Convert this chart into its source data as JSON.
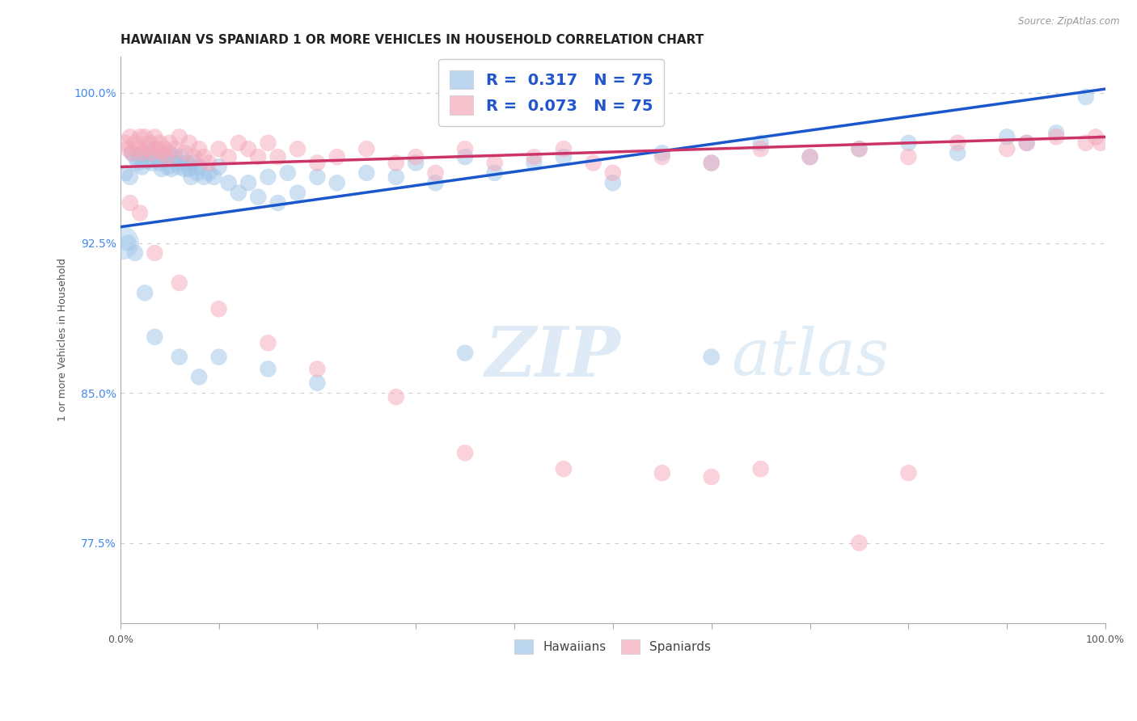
{
  "title": "HAWAIIAN VS SPANIARD 1 OR MORE VEHICLES IN HOUSEHOLD CORRELATION CHART",
  "source": "Source: ZipAtlas.com",
  "ylabel": "1 or more Vehicles in Household",
  "xlim": [
    0.0,
    1.0
  ],
  "ylim": [
    0.735,
    1.018
  ],
  "yticks": [
    0.775,
    0.85,
    0.925,
    1.0
  ],
  "ytick_labels": [
    "77.5%",
    "85.0%",
    "92.5%",
    "100.0%"
  ],
  "background_color": "#ffffff",
  "grid_color": "#cccccc",
  "blue_color": "#9fc5e8",
  "pink_color": "#f4a7b9",
  "blue_line_color": "#1a56cc",
  "pink_line_color": "#cc3366",
  "legend_blue_R": "0.317",
  "legend_blue_N": "75",
  "legend_pink_R": "0.073",
  "legend_pink_N": "75",
  "watermark_zip": "ZIP",
  "watermark_atlas": "atlas",
  "title_fontsize": 11,
  "axis_label_fontsize": 9,
  "tick_fontsize": 9,
  "legend_fontsize": 14,
  "hawaiians_x": [
    0.005,
    0.01,
    0.012,
    0.015,
    0.018,
    0.02,
    0.022,
    0.025,
    0.028,
    0.03,
    0.032,
    0.035,
    0.038,
    0.04,
    0.042,
    0.045,
    0.048,
    0.05,
    0.052,
    0.055,
    0.058,
    0.06,
    0.062,
    0.065,
    0.068,
    0.07,
    0.072,
    0.075,
    0.078,
    0.08,
    0.085,
    0.09,
    0.095,
    0.1,
    0.11,
    0.12,
    0.13,
    0.14,
    0.15,
    0.16,
    0.17,
    0.18,
    0.2,
    0.22,
    0.25,
    0.28,
    0.3,
    0.32,
    0.35,
    0.38,
    0.42,
    0.45,
    0.5,
    0.55,
    0.6,
    0.65,
    0.7,
    0.75,
    0.8,
    0.85,
    0.9,
    0.92,
    0.95,
    0.98,
    0.008,
    0.015,
    0.025,
    0.035,
    0.06,
    0.08,
    0.1,
    0.15,
    0.2,
    0.35,
    0.6
  ],
  "hawaiians_y": [
    0.96,
    0.958,
    0.97,
    0.968,
    0.965,
    0.968,
    0.963,
    0.97,
    0.966,
    0.968,
    0.965,
    0.972,
    0.968,
    0.965,
    0.962,
    0.968,
    0.963,
    0.97,
    0.962,
    0.968,
    0.965,
    0.963,
    0.968,
    0.962,
    0.965,
    0.962,
    0.958,
    0.965,
    0.96,
    0.963,
    0.958,
    0.96,
    0.958,
    0.963,
    0.955,
    0.95,
    0.955,
    0.948,
    0.958,
    0.945,
    0.96,
    0.95,
    0.958,
    0.955,
    0.96,
    0.958,
    0.965,
    0.955,
    0.968,
    0.96,
    0.965,
    0.968,
    0.955,
    0.97,
    0.965,
    0.975,
    0.968,
    0.972,
    0.975,
    0.97,
    0.978,
    0.975,
    0.98,
    0.998,
    0.925,
    0.92,
    0.9,
    0.878,
    0.868,
    0.858,
    0.868,
    0.862,
    0.855,
    0.87,
    0.868
  ],
  "spaniards_x": [
    0.005,
    0.008,
    0.01,
    0.012,
    0.015,
    0.018,
    0.02,
    0.022,
    0.025,
    0.028,
    0.03,
    0.032,
    0.035,
    0.038,
    0.04,
    0.042,
    0.045,
    0.048,
    0.05,
    0.055,
    0.06,
    0.065,
    0.07,
    0.075,
    0.08,
    0.085,
    0.09,
    0.1,
    0.11,
    0.12,
    0.13,
    0.14,
    0.15,
    0.16,
    0.18,
    0.2,
    0.22,
    0.25,
    0.28,
    0.3,
    0.32,
    0.35,
    0.38,
    0.42,
    0.45,
    0.48,
    0.5,
    0.55,
    0.6,
    0.65,
    0.7,
    0.75,
    0.8,
    0.85,
    0.9,
    0.92,
    0.95,
    0.98,
    0.99,
    0.995,
    0.01,
    0.02,
    0.035,
    0.06,
    0.1,
    0.15,
    0.2,
    0.28,
    0.35,
    0.45,
    0.55,
    0.6,
    0.65,
    0.75,
    0.8
  ],
  "spaniards_y": [
    0.975,
    0.972,
    0.978,
    0.97,
    0.975,
    0.972,
    0.978,
    0.97,
    0.978,
    0.972,
    0.975,
    0.97,
    0.978,
    0.972,
    0.975,
    0.97,
    0.972,
    0.968,
    0.975,
    0.972,
    0.978,
    0.97,
    0.975,
    0.968,
    0.972,
    0.968,
    0.965,
    0.972,
    0.968,
    0.975,
    0.972,
    0.968,
    0.975,
    0.968,
    0.972,
    0.965,
    0.968,
    0.972,
    0.965,
    0.968,
    0.96,
    0.972,
    0.965,
    0.968,
    0.972,
    0.965,
    0.96,
    0.968,
    0.965,
    0.972,
    0.968,
    0.972,
    0.968,
    0.975,
    0.972,
    0.975,
    0.978,
    0.975,
    0.978,
    0.975,
    0.945,
    0.94,
    0.92,
    0.905,
    0.892,
    0.875,
    0.862,
    0.848,
    0.82,
    0.812,
    0.81,
    0.808,
    0.812,
    0.775,
    0.81
  ]
}
